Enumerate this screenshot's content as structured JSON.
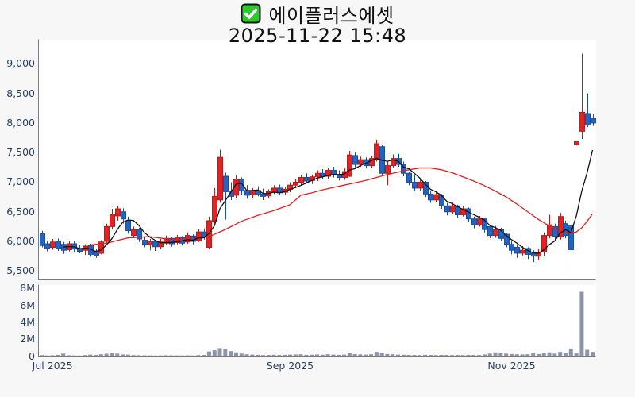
{
  "header": {
    "title": "에이플러스에셋",
    "subtitle": "2025-11-22 15:48",
    "checkbox_icon": "green-checked-checkbox",
    "checkbox_color": "#2ec82e",
    "checkbox_check_color": "#ffffff"
  },
  "chart_data": {
    "type": "candlestick",
    "title": "에이플러스에셋",
    "subtitle": "2025-11-22 15:48",
    "legend_position": "none",
    "grid": false,
    "price_axis": {
      "tick_labels": [
        "5,500",
        "6,000",
        "6,500",
        "7,000",
        "7,500",
        "8,000",
        "8,500",
        "9,000"
      ],
      "tick_values": [
        5500,
        6000,
        6500,
        7000,
        7500,
        8000,
        8500,
        9000
      ],
      "range": [
        5350,
        9400
      ]
    },
    "volume_axis": {
      "tick_labels": [
        "0",
        "2M",
        "4M",
        "6M",
        "8M"
      ],
      "tick_values": [
        0,
        2,
        4,
        6,
        8
      ],
      "unit": "M",
      "range": [
        0,
        8.35
      ]
    },
    "x_axis": {
      "ticks": [
        {
          "label": "Jul 2025",
          "index": 2
        },
        {
          "label": "Sep 2025",
          "index": 46
        },
        {
          "label": "Nov 2025",
          "index": 87
        }
      ]
    },
    "colors": {
      "up": "#e02426",
      "up_edge": "#b71c1c",
      "down": "#2563c0",
      "down_edge": "#1b4e9b",
      "volume": "#8d95ad",
      "ma_fast": "#111111",
      "ma_slow": "#e02020",
      "axis_label": "#2a3f5f",
      "spine": "#7a7a7a",
      "plot_bg": "#ffffff",
      "fig_bg": "#f7f7f7"
    },
    "candles_ohlc": [
      [
        6130,
        6180,
        5900,
        5930
      ],
      [
        5960,
        6010,
        5830,
        5880
      ],
      [
        5900,
        6040,
        5860,
        5990
      ],
      [
        6000,
        6050,
        5840,
        5880
      ],
      [
        5950,
        5990,
        5790,
        5850
      ],
      [
        5860,
        6010,
        5830,
        5960
      ],
      [
        5960,
        6000,
        5810,
        5870
      ],
      [
        5880,
        5940,
        5800,
        5830
      ],
      [
        5850,
        5950,
        5770,
        5920
      ],
      [
        5930,
        5960,
        5740,
        5780
      ],
      [
        5830,
        5870,
        5720,
        5760
      ],
      [
        5800,
        6020,
        5780,
        5990
      ],
      [
        6000,
        6300,
        5970,
        6250
      ],
      [
        6250,
        6550,
        6200,
        6450
      ],
      [
        6430,
        6600,
        6350,
        6550
      ],
      [
        6500,
        6560,
        6300,
        6380
      ],
      [
        6350,
        6420,
        6130,
        6180
      ],
      [
        6100,
        6250,
        6060,
        6200
      ],
      [
        6200,
        6230,
        5990,
        6040
      ],
      [
        6020,
        6080,
        5900,
        5950
      ],
      [
        5940,
        6040,
        5850,
        6000
      ],
      [
        6000,
        6020,
        5840,
        5910
      ],
      [
        5910,
        6040,
        5870,
        5990
      ],
      [
        5970,
        6100,
        5940,
        6050
      ],
      [
        6050,
        6070,
        5910,
        5960
      ],
      [
        5980,
        6110,
        5950,
        6070
      ],
      [
        6060,
        6090,
        5930,
        5970
      ],
      [
        5990,
        6150,
        5960,
        6100
      ],
      [
        6090,
        6120,
        5950,
        6000
      ],
      [
        6010,
        6210,
        5990,
        6160
      ],
      [
        6160,
        6220,
        6030,
        6070
      ],
      [
        5900,
        6420,
        5870,
        6350
      ],
      [
        6340,
        6900,
        6300,
        6760
      ],
      [
        6700,
        7550,
        6650,
        7420
      ],
      [
        7100,
        7160,
        6370,
        6840
      ],
      [
        6850,
        7000,
        6700,
        6760
      ],
      [
        6780,
        7120,
        6740,
        7050
      ],
      [
        7050,
        7080,
        6790,
        6850
      ],
      [
        6860,
        6950,
        6720,
        6780
      ],
      [
        6790,
        6900,
        6740,
        6860
      ],
      [
        6860,
        6930,
        6760,
        6800
      ],
      [
        6800,
        6890,
        6700,
        6760
      ],
      [
        6770,
        6880,
        6730,
        6840
      ],
      [
        6840,
        6950,
        6800,
        6900
      ],
      [
        6900,
        6960,
        6780,
        6820
      ],
      [
        6830,
        6920,
        6780,
        6880
      ],
      [
        6880,
        7000,
        6830,
        6950
      ],
      [
        6950,
        7060,
        6900,
        7000
      ],
      [
        7000,
        7120,
        6950,
        7080
      ],
      [
        7080,
        7150,
        6980,
        7020
      ],
      [
        7030,
        7130,
        6970,
        7090
      ],
      [
        7090,
        7200,
        7020,
        7150
      ],
      [
        7150,
        7220,
        7050,
        7100
      ],
      [
        7100,
        7250,
        7060,
        7200
      ],
      [
        7200,
        7260,
        7080,
        7120
      ],
      [
        7120,
        7200,
        7030,
        7080
      ],
      [
        7080,
        7230,
        7040,
        7180
      ],
      [
        7100,
        7530,
        7090,
        7460
      ],
      [
        7450,
        7500,
        7250,
        7300
      ],
      [
        7300,
        7430,
        7260,
        7380
      ],
      [
        7380,
        7420,
        7230,
        7280
      ],
      [
        7280,
        7450,
        7240,
        7400
      ],
      [
        7380,
        7720,
        7350,
        7650
      ],
      [
        7600,
        7620,
        7100,
        7150
      ],
      [
        7150,
        7350,
        6950,
        7280
      ],
      [
        7280,
        7470,
        7240,
        7400
      ],
      [
        7400,
        7480,
        7260,
        7300
      ],
      [
        7300,
        7350,
        7100,
        7150
      ],
      [
        7150,
        7180,
        6950,
        7000
      ],
      [
        7000,
        7120,
        6850,
        6900
      ],
      [
        6900,
        7050,
        6860,
        7000
      ],
      [
        7000,
        7020,
        6750,
        6800
      ],
      [
        6800,
        6850,
        6650,
        6700
      ],
      [
        6700,
        6850,
        6660,
        6790
      ],
      [
        6780,
        6800,
        6550,
        6600
      ],
      [
        6600,
        6650,
        6440,
        6500
      ],
      [
        6500,
        6660,
        6470,
        6600
      ],
      [
        6600,
        6620,
        6400,
        6450
      ],
      [
        6450,
        6600,
        6420,
        6550
      ],
      [
        6550,
        6570,
        6320,
        6380
      ],
      [
        6380,
        6420,
        6220,
        6280
      ],
      [
        6280,
        6430,
        6250,
        6380
      ],
      [
        6380,
        6400,
        6150,
        6200
      ],
      [
        6250,
        6280,
        6050,
        6100
      ],
      [
        6100,
        6260,
        6060,
        6200
      ],
      [
        6200,
        6230,
        6000,
        6050
      ],
      [
        6120,
        6150,
        5900,
        5950
      ],
      [
        5950,
        6000,
        5780,
        5850
      ],
      [
        5900,
        5950,
        5720,
        5800
      ],
      [
        5800,
        5920,
        5760,
        5850
      ],
      [
        5880,
        5900,
        5700,
        5780
      ],
      [
        5800,
        5850,
        5650,
        5750
      ],
      [
        5750,
        5880,
        5680,
        5820
      ],
      [
        5820,
        6150,
        5750,
        6100
      ],
      [
        6100,
        6450,
        6050,
        6280
      ],
      [
        6250,
        6300,
        6020,
        6080
      ],
      [
        6080,
        6480,
        6030,
        6420
      ],
      [
        6300,
        6350,
        6050,
        6100
      ],
      [
        6260,
        6280,
        5570,
        5860
      ],
      [
        7640,
        7700,
        7620,
        7690
      ],
      [
        7860,
        9170,
        7730,
        8180
      ],
      [
        8160,
        8500,
        7930,
        7980
      ],
      [
        8080,
        8150,
        7950,
        8000
      ]
    ],
    "volume_m": [
      0.12,
      0.08,
      0.1,
      0.15,
      0.3,
      0.1,
      0.08,
      0.07,
      0.12,
      0.18,
      0.15,
      0.22,
      0.28,
      0.35,
      0.3,
      0.2,
      0.18,
      0.12,
      0.1,
      0.09,
      0.08,
      0.07,
      0.08,
      0.1,
      0.09,
      0.08,
      0.07,
      0.09,
      0.08,
      0.12,
      0.15,
      0.55,
      0.7,
      0.95,
      0.85,
      0.6,
      0.45,
      0.3,
      0.22,
      0.18,
      0.15,
      0.12,
      0.14,
      0.16,
      0.13,
      0.15,
      0.18,
      0.2,
      0.22,
      0.15,
      0.17,
      0.2,
      0.16,
      0.22,
      0.18,
      0.15,
      0.18,
      0.35,
      0.25,
      0.2,
      0.18,
      0.22,
      0.5,
      0.4,
      0.25,
      0.22,
      0.18,
      0.16,
      0.15,
      0.14,
      0.12,
      0.16,
      0.14,
      0.12,
      0.15,
      0.14,
      0.12,
      0.13,
      0.12,
      0.15,
      0.14,
      0.13,
      0.2,
      0.3,
      0.45,
      0.35,
      0.3,
      0.25,
      0.22,
      0.2,
      0.22,
      0.35,
      0.25,
      0.4,
      0.45,
      0.3,
      0.5,
      0.35,
      0.85,
      0.4,
      7.6,
      0.75,
      0.5
    ],
    "ma_fast": {
      "window": 5,
      "start_index": 4
    },
    "ma_slow": {
      "anchors": [
        [
          9,
          5940
        ],
        [
          12,
          5970
        ],
        [
          16,
          6060
        ],
        [
          20,
          6080
        ],
        [
          24,
          6030
        ],
        [
          28,
          6040
        ],
        [
          31,
          6080
        ],
        [
          34,
          6200
        ],
        [
          37,
          6340
        ],
        [
          40,
          6440
        ],
        [
          43,
          6520
        ],
        [
          46,
          6620
        ],
        [
          48,
          6780
        ],
        [
          50,
          6820
        ],
        [
          52,
          6870
        ],
        [
          54,
          6910
        ],
        [
          56,
          6950
        ],
        [
          58,
          6990
        ],
        [
          60,
          7030
        ],
        [
          62,
          7080
        ],
        [
          64,
          7130
        ],
        [
          66,
          7170
        ],
        [
          68,
          7210
        ],
        [
          70,
          7240
        ],
        [
          72,
          7240
        ],
        [
          74,
          7210
        ],
        [
          76,
          7160
        ],
        [
          78,
          7090
        ],
        [
          80,
          7020
        ],
        [
          82,
          6940
        ],
        [
          84,
          6850
        ],
        [
          86,
          6750
        ],
        [
          88,
          6630
        ],
        [
          90,
          6500
        ],
        [
          92,
          6370
        ],
        [
          94,
          6260
        ],
        [
          96,
          6180
        ],
        [
          97,
          6150
        ],
        [
          98,
          6140
        ],
        [
          99,
          6160
        ],
        [
          100,
          6230
        ],
        [
          101,
          6340
        ],
        [
          102,
          6470
        ]
      ]
    }
  }
}
